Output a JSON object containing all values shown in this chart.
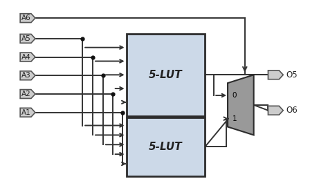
{
  "bg_color": "#ffffff",
  "lut_fill": "#ccd9e8",
  "lut_border": "#2c2c2c",
  "mux_fill": "#999999",
  "mux_border": "#2c2c2c",
  "pin_fill": "#cccccc",
  "pin_border": "#555555",
  "line_color": "#333333",
  "dot_color": "#111111",
  "text_color": "#222222",
  "lut_label": "5-LUT",
  "lut_font_size": 11,
  "inputs": [
    "A6",
    "A5",
    "A4",
    "A3",
    "A2",
    "A1"
  ],
  "outputs": [
    "O5",
    "O6"
  ],
  "figsize": [
    4.74,
    2.72
  ],
  "dpi": 100
}
